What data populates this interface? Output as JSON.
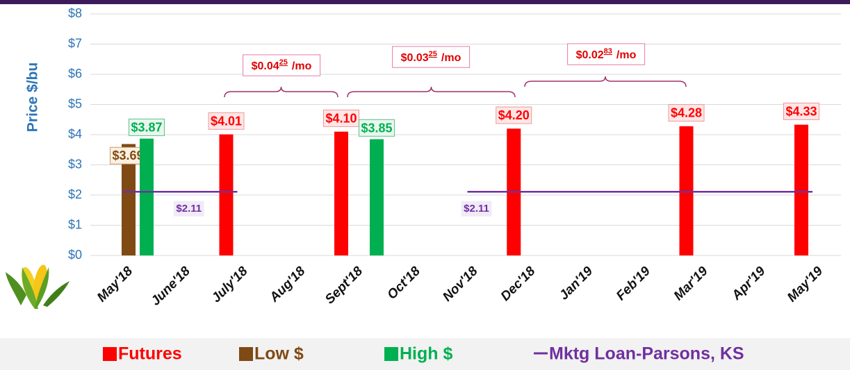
{
  "chart_data": {
    "type": "bar",
    "y_label": "Price $/bu",
    "categories": [
      "May'18",
      "June'18",
      "July'18",
      "Aug'18",
      "Sept'18",
      "Oct'18",
      "Nov'18",
      "Dec'18",
      "Jan'19",
      "Feb'19",
      "Mar'19",
      "Apr'19",
      "May'19"
    ],
    "ylim": [
      0,
      8
    ],
    "yticks": [
      {
        "value": 0,
        "label": "$0"
      },
      {
        "value": 1,
        "label": "$1"
      },
      {
        "value": 2,
        "label": "$2"
      },
      {
        "value": 3,
        "label": "$3"
      },
      {
        "value": 4,
        "label": "$4"
      },
      {
        "value": 5,
        "label": "$5"
      },
      {
        "value": 6,
        "label": "$6"
      },
      {
        "value": 7,
        "label": "$7"
      },
      {
        "value": 8,
        "label": "$8"
      }
    ],
    "grid": true,
    "series": [
      {
        "name": "Futures",
        "color": "#ff0000",
        "type": "bar",
        "values": [
          null,
          null,
          4.01,
          null,
          4.1,
          null,
          null,
          4.2,
          null,
          null,
          4.28,
          null,
          4.33
        ],
        "value_labels": [
          null,
          null,
          "$4.01",
          null,
          "$4.10",
          null,
          null,
          "$4.20",
          null,
          null,
          "$4.28",
          null,
          "$4.33"
        ]
      },
      {
        "name": "Low $",
        "color": "#7f4a14",
        "type": "bar",
        "values": [
          3.69,
          null,
          null,
          null,
          null,
          null,
          null,
          null,
          null,
          null,
          null,
          null,
          null
        ],
        "value_labels": [
          "$3.69",
          null,
          null,
          null,
          null,
          null,
          null,
          null,
          null,
          null,
          null,
          null,
          null
        ]
      },
      {
        "name": "High $",
        "color": "#00b050",
        "type": "bar",
        "values": [
          3.87,
          null,
          null,
          null,
          3.85,
          null,
          null,
          null,
          null,
          null,
          null,
          null,
          null
        ],
        "value_labels": [
          "$3.87",
          null,
          null,
          null,
          "$3.85",
          null,
          null,
          null,
          null,
          null,
          null,
          null,
          null
        ]
      },
      {
        "name": "Mktg Loan-Parsons, KS",
        "color": "#7030a0",
        "type": "line",
        "values": [
          2.11,
          2.11,
          2.11,
          null,
          null,
          null,
          2.11,
          2.11,
          2.11,
          2.11,
          2.11,
          2.11,
          2.11
        ],
        "value_labels": [
          null,
          "$2.11",
          null,
          null,
          null,
          null,
          "$2.11",
          null,
          null,
          null,
          null,
          null,
          null
        ]
      }
    ],
    "annotations": [
      {
        "text": "$0.04",
        "superscript": "25",
        "suffix": "/mo"
      },
      {
        "text": "$0.03",
        "superscript": "25",
        "suffix": "/mo"
      },
      {
        "text": "$0.02",
        "superscript": "83",
        "suffix": "/mo"
      }
    ]
  }
}
